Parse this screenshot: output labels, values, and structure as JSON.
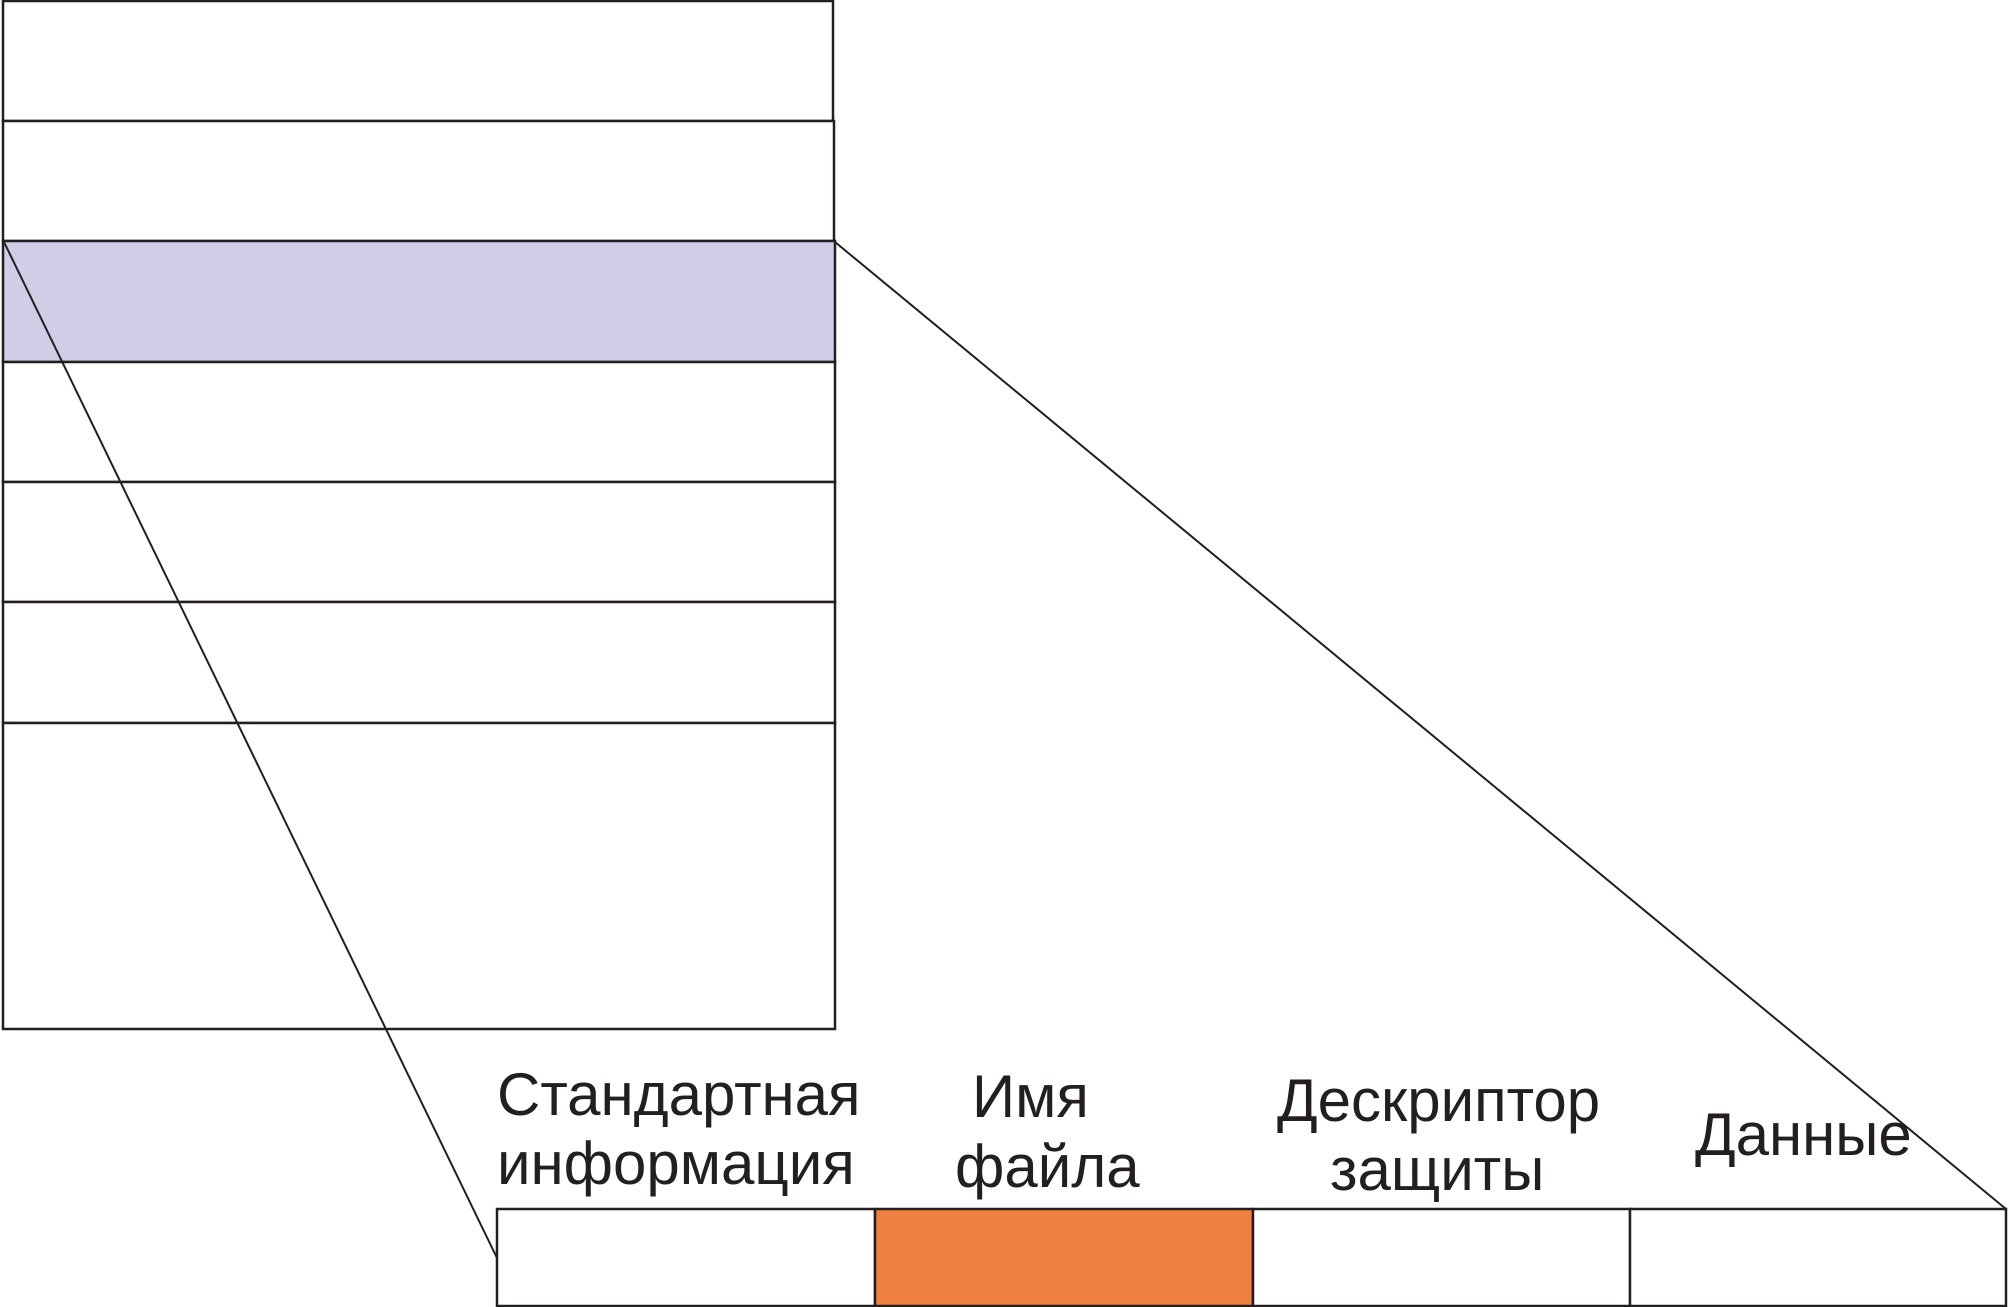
{
  "colors": {
    "stroke": "#231f20",
    "highlight_record": "#d1cde6",
    "highlight_field": "#f08040",
    "background": "#ffffff"
  },
  "attributes": [
    {
      "id": "standard-info",
      "line1": "Стандартная",
      "line2": "информация",
      "highlighted": false
    },
    {
      "id": "file-name",
      "line1": "Имя",
      "line2": "файла",
      "highlighted": true
    },
    {
      "id": "security-descriptor",
      "line1": "Дескриптор",
      "line2": "защиты",
      "highlighted": false
    },
    {
      "id": "data",
      "line1": "Данные",
      "line2": "",
      "highlighted": false
    }
  ],
  "table": {
    "row_count": 7,
    "highlighted_row_index": 2
  }
}
